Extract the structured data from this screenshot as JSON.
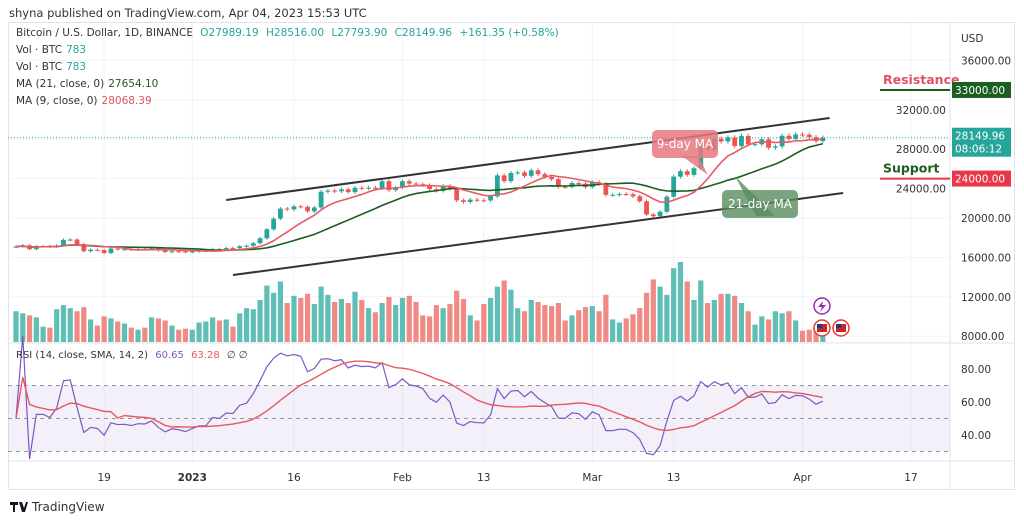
{
  "header": {
    "published": "shyna published on TradingView.com, Apr 04, 2023 15:53 UTC",
    "symbol": "Bitcoin / U.S. Dollar, 1D, BINANCE",
    "open": "O27989.19",
    "high": "H28516.00",
    "low": "L27793.90",
    "close": "C28149.96",
    "change": "+161.35 (+0.58%)"
  },
  "indicators": [
    {
      "label": "Vol · BTC",
      "value": "783"
    },
    {
      "label": "Vol · BTC",
      "value": "783"
    },
    {
      "label": "MA (21, close, 0)",
      "value": "27654.10"
    },
    {
      "label": "MA (9, close, 0)",
      "value": "28068.39"
    }
  ],
  "rsi_legend": {
    "label": "RSI (14, close, SMA, 14, 2)",
    "value1": "60.65",
    "value2": "63.28",
    "extra": "∅ ∅"
  },
  "price_axis": {
    "currency": "USD",
    "ticks": [
      "36000.00",
      "32000.00",
      "28000.00",
      "24000.00",
      "20000.00",
      "16000.00",
      "12000.00",
      "8000.00"
    ]
  },
  "last_price": {
    "value": "28149.96",
    "countdown": "08:06:12"
  },
  "annotations": {
    "resistance": {
      "label": "Resistance",
      "level": 33000,
      "badge": "33000.00"
    },
    "support": {
      "label": "Support",
      "level": 24000,
      "badge": "24000.00"
    },
    "ma9_callout": "9-day MA",
    "ma21_callout": "21-day MA",
    "channel_upper": {
      "from": [
        "2023-01-06",
        21830
      ],
      "to": [
        "2023-04-05",
        30150
      ]
    },
    "channel_lower": {
      "from": [
        "2023-01-07",
        14210
      ],
      "to": [
        "2023-04-07",
        22540
      ]
    }
  },
  "brand": "TradingView",
  "colors": {
    "up": "#26a69a",
    "down": "#ef5350",
    "vol_up": "#5fbfb6",
    "vol_down": "#f08a85",
    "ma9": "#e85b65",
    "ma21": "#1b5e20",
    "rsi": "#7e57c2",
    "rsi_ma": "#e8575f",
    "resistance": "#1b5e20",
    "support": "#e8374b",
    "last": "#26a69a"
  },
  "chart_data": {
    "type": "candlestick",
    "start_date": "2022-12-06",
    "end_date": "2023-04-04",
    "close": [
      17090,
      17220,
      16840,
      17130,
      17130,
      17100,
      17210,
      17780,
      17810,
      17360,
      16630,
      16780,
      16740,
      16440,
      16900,
      16820,
      16830,
      16780,
      16840,
      16830,
      16920,
      16710,
      16550,
      16630,
      16600,
      16540,
      16610,
      16670,
      16670,
      16850,
      16830,
      16950,
      16940,
      17130,
      17180,
      17440,
      17940,
      18850,
      19930,
      20950,
      20870,
      21180,
      21130,
      20680,
      21070,
      22670,
      22780,
      22710,
      22910,
      22630,
      23060,
      23010,
      23080,
      23030,
      23740,
      22830,
      23120,
      23730,
      23490,
      23430,
      23330,
      22930,
      22760,
      23260,
      22960,
      21800,
      21630,
      21860,
      21790,
      21780,
      22200,
      24320,
      23740,
      24570,
      24630,
      24280,
      24840,
      24450,
      24180,
      23940,
      23170,
      23160,
      23550,
      23490,
      23140,
      23640,
      23470,
      22350,
      22350,
      22430,
      22410,
      22200,
      21700,
      20360,
      20190,
      20630,
      22160,
      24200,
      24750,
      24380,
      25050,
      27420,
      26970,
      28040,
      27770,
      28170,
      27300,
      28330,
      27480,
      27490,
      27990,
      27140,
      27270,
      28350,
      28030,
      28480,
      28450,
      28200,
      27810,
      28150
    ],
    "volume": [
      3000,
      2800,
      2600,
      2400,
      1500,
      1400,
      3200,
      3600,
      3300,
      3000,
      3400,
      2200,
      1600,
      2500,
      2300,
      2000,
      1800,
      1400,
      1200,
      1400,
      2400,
      2300,
      2100,
      1600,
      1200,
      1300,
      1200,
      1900,
      2000,
      2400,
      2100,
      2200,
      1500,
      2800,
      3300,
      3200,
      4100,
      5500,
      4800,
      5900,
      3800,
      4500,
      4300,
      4700,
      3700,
      5400,
      4600,
      3900,
      4200,
      3800,
      4900,
      4100,
      3300,
      2900,
      3800,
      4400,
      3600,
      4300,
      4500,
      3900,
      2600,
      2500,
      3600,
      3300,
      3700,
      5000,
      4200,
      2600,
      2100,
      3700,
      4300,
      5400,
      6000,
      5100,
      3300,
      3000,
      4100,
      3900,
      3600,
      3500,
      3800,
      2100,
      2600,
      3100,
      3400,
      3500,
      3000,
      4600,
      2200,
      1900,
      2300,
      2700,
      3300,
      4800,
      6100,
      5400,
      4600,
      7200,
      7800,
      5900,
      4100,
      6000,
      3800,
      4100,
      4700,
      4700,
      4500,
      3800,
      3000,
      1700,
      2500,
      2200,
      3000,
      2800,
      3000,
      2100,
      1100,
      1200,
      1400,
      783
    ],
    "moving_averages": [
      9,
      21
    ],
    "rsi": {
      "period": 14,
      "sma": 14,
      "levels": [
        70,
        50,
        30
      ],
      "ticks": [
        "80.00",
        "60.00",
        "40.00"
      ]
    },
    "x_ticks": [
      {
        "date": "2022-12-19",
        "label": "19"
      },
      {
        "date": "2023-01-01",
        "label": "2023"
      },
      {
        "date": "2023-01-16",
        "label": "16"
      },
      {
        "date": "2023-02-01",
        "label": "Feb"
      },
      {
        "date": "2023-02-13",
        "label": "13"
      },
      {
        "date": "2023-03-01",
        "label": "Mar"
      },
      {
        "date": "2023-03-13",
        "label": "13"
      },
      {
        "date": "2023-04-01",
        "label": "Apr"
      },
      {
        "date": "2023-04-17",
        "label": "17"
      }
    ],
    "ylim": [
      8000,
      36000
    ],
    "grid": true
  }
}
